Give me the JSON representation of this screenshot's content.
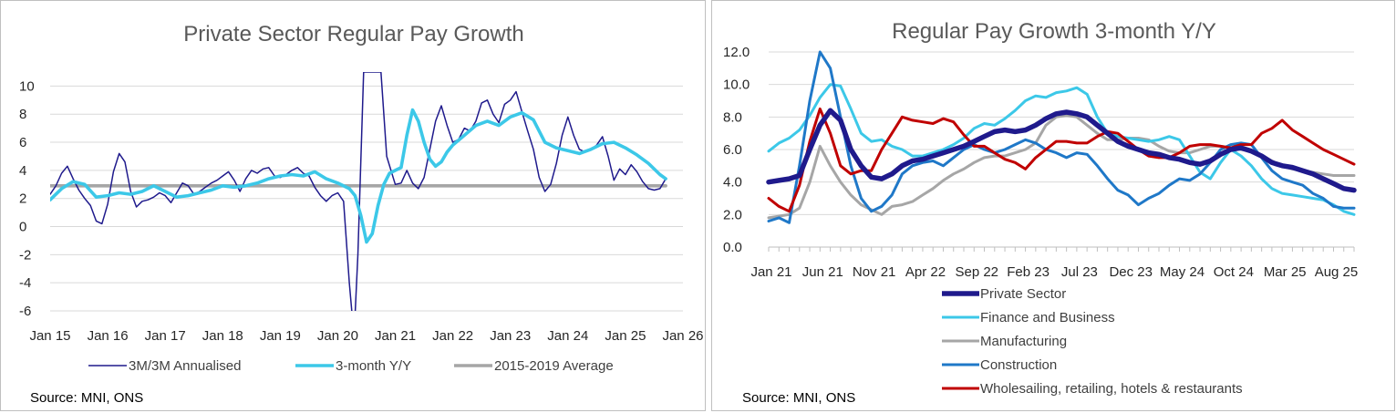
{
  "chart_data": [
    {
      "type": "line",
      "title": "Private Sector Regular Pay Growth",
      "source": "Source: MNI, ONS",
      "xlabel": "",
      "ylabel": "",
      "ylim": [
        -6,
        11
      ],
      "yticks": [
        "10",
        "8",
        "6",
        "4",
        "2",
        "0",
        "-2",
        "-4",
        "-6"
      ],
      "ytick_values": [
        10,
        8,
        6,
        4,
        2,
        0,
        -2,
        -4,
        -6
      ],
      "xticks": [
        "Jan 15",
        "Jan 16",
        "Jan 17",
        "Jan 18",
        "Jan 19",
        "Jan 20",
        "Jan 21",
        "Jan 22",
        "Jan 23",
        "Jan 24",
        "Jan 25",
        "Jan 26"
      ],
      "xtick_values": [
        2015,
        2016,
        2017,
        2018,
        2019,
        2020,
        2021,
        2022,
        2023,
        2024,
        2025,
        2026
      ],
      "series": [
        {
          "name": "3M/3M Annualised",
          "color": "#1f1a8c",
          "points": [
            [
              2015.0,
              2.3
            ],
            [
              2015.1,
              2.9
            ],
            [
              2015.2,
              3.8
            ],
            [
              2015.3,
              4.3
            ],
            [
              2015.4,
              3.4
            ],
            [
              2015.5,
              2.6
            ],
            [
              2015.6,
              2.0
            ],
            [
              2015.7,
              1.5
            ],
            [
              2015.8,
              0.4
            ],
            [
              2015.9,
              0.2
            ],
            [
              2016.0,
              1.6
            ],
            [
              2016.1,
              3.9
            ],
            [
              2016.2,
              5.2
            ],
            [
              2016.3,
              4.6
            ],
            [
              2016.4,
              2.5
            ],
            [
              2016.5,
              1.4
            ],
            [
              2016.6,
              1.8
            ],
            [
              2016.7,
              1.9
            ],
            [
              2016.8,
              2.1
            ],
            [
              2016.9,
              2.4
            ],
            [
              2017.0,
              2.2
            ],
            [
              2017.1,
              1.7
            ],
            [
              2017.2,
              2.4
            ],
            [
              2017.3,
              3.1
            ],
            [
              2017.4,
              2.9
            ],
            [
              2017.5,
              2.3
            ],
            [
              2017.6,
              2.5
            ],
            [
              2017.7,
              2.8
            ],
            [
              2017.8,
              3.1
            ],
            [
              2017.9,
              3.3
            ],
            [
              2018.0,
              3.6
            ],
            [
              2018.1,
              3.9
            ],
            [
              2018.2,
              3.3
            ],
            [
              2018.3,
              2.5
            ],
            [
              2018.4,
              3.4
            ],
            [
              2018.5,
              4.0
            ],
            [
              2018.6,
              3.8
            ],
            [
              2018.7,
              4.1
            ],
            [
              2018.8,
              4.2
            ],
            [
              2018.9,
              3.6
            ],
            [
              2019.0,
              3.5
            ],
            [
              2019.1,
              3.7
            ],
            [
              2019.2,
              4.0
            ],
            [
              2019.3,
              4.2
            ],
            [
              2019.4,
              3.8
            ],
            [
              2019.5,
              3.6
            ],
            [
              2019.6,
              2.8
            ],
            [
              2019.7,
              2.2
            ],
            [
              2019.8,
              1.8
            ],
            [
              2019.9,
              2.2
            ],
            [
              2020.0,
              2.4
            ],
            [
              2020.1,
              1.8
            ],
            [
              2020.2,
              -4.0
            ],
            [
              2020.25,
              -6.3
            ],
            [
              2020.3,
              -6.3
            ],
            [
              2020.35,
              -2.0
            ],
            [
              2020.45,
              11.0
            ],
            [
              2020.75,
              11.0
            ],
            [
              2020.85,
              5.0
            ],
            [
              2021.0,
              3.0
            ],
            [
              2021.1,
              3.1
            ],
            [
              2021.2,
              4.0
            ],
            [
              2021.3,
              3.1
            ],
            [
              2021.4,
              2.7
            ],
            [
              2021.5,
              3.5
            ],
            [
              2021.6,
              5.5
            ],
            [
              2021.7,
              7.5
            ],
            [
              2021.8,
              8.6
            ],
            [
              2021.9,
              7.2
            ],
            [
              2022.0,
              6.0
            ],
            [
              2022.1,
              6.2
            ],
            [
              2022.2,
              7.0
            ],
            [
              2022.3,
              6.8
            ],
            [
              2022.4,
              7.5
            ],
            [
              2022.5,
              8.8
            ],
            [
              2022.6,
              9.0
            ],
            [
              2022.7,
              8.0
            ],
            [
              2022.8,
              7.4
            ],
            [
              2022.9,
              8.7
            ],
            [
              2023.0,
              9.0
            ],
            [
              2023.1,
              9.6
            ],
            [
              2023.2,
              8.2
            ],
            [
              2023.3,
              6.8
            ],
            [
              2023.4,
              5.5
            ],
            [
              2023.5,
              3.5
            ],
            [
              2023.6,
              2.5
            ],
            [
              2023.7,
              3.0
            ],
            [
              2023.8,
              4.5
            ],
            [
              2023.9,
              6.5
            ],
            [
              2024.0,
              7.8
            ],
            [
              2024.1,
              6.5
            ],
            [
              2024.2,
              5.5
            ],
            [
              2024.3,
              5.3
            ],
            [
              2024.4,
              5.5
            ],
            [
              2024.5,
              5.8
            ],
            [
              2024.6,
              6.4
            ],
            [
              2024.7,
              5.0
            ],
            [
              2024.8,
              3.3
            ],
            [
              2024.9,
              4.1
            ],
            [
              2025.0,
              3.7
            ],
            [
              2025.1,
              4.4
            ],
            [
              2025.2,
              3.9
            ],
            [
              2025.3,
              3.2
            ],
            [
              2025.4,
              2.7
            ],
            [
              2025.5,
              2.6
            ],
            [
              2025.6,
              2.7
            ],
            [
              2025.7,
              3.4
            ]
          ]
        },
        {
          "name": "3-month Y/Y",
          "color": "#3cc8e8",
          "points": [
            [
              2015.0,
              1.9
            ],
            [
              2015.2,
              2.7
            ],
            [
              2015.4,
              3.2
            ],
            [
              2015.6,
              3.0
            ],
            [
              2015.8,
              2.1
            ],
            [
              2016.0,
              2.2
            ],
            [
              2016.2,
              2.4
            ],
            [
              2016.4,
              2.3
            ],
            [
              2016.6,
              2.5
            ],
            [
              2016.8,
              2.9
            ],
            [
              2017.0,
              2.5
            ],
            [
              2017.2,
              2.1
            ],
            [
              2017.4,
              2.2
            ],
            [
              2017.6,
              2.4
            ],
            [
              2017.8,
              2.6
            ],
            [
              2018.0,
              2.9
            ],
            [
              2018.2,
              2.8
            ],
            [
              2018.4,
              2.9
            ],
            [
              2018.6,
              3.1
            ],
            [
              2018.8,
              3.4
            ],
            [
              2019.0,
              3.6
            ],
            [
              2019.2,
              3.7
            ],
            [
              2019.4,
              3.6
            ],
            [
              2019.6,
              3.9
            ],
            [
              2019.8,
              3.4
            ],
            [
              2020.0,
              3.1
            ],
            [
              2020.2,
              2.7
            ],
            [
              2020.3,
              2.2
            ],
            [
              2020.4,
              0.8
            ],
            [
              2020.5,
              -1.1
            ],
            [
              2020.6,
              -0.5
            ],
            [
              2020.7,
              1.5
            ],
            [
              2020.8,
              3.0
            ],
            [
              2020.9,
              3.8
            ],
            [
              2021.0,
              4.0
            ],
            [
              2021.1,
              4.2
            ],
            [
              2021.2,
              6.5
            ],
            [
              2021.3,
              8.3
            ],
            [
              2021.4,
              7.5
            ],
            [
              2021.5,
              6.0
            ],
            [
              2021.6,
              4.8
            ],
            [
              2021.7,
              4.3
            ],
            [
              2021.8,
              4.6
            ],
            [
              2021.9,
              5.3
            ],
            [
              2022.0,
              5.8
            ],
            [
              2022.2,
              6.5
            ],
            [
              2022.4,
              7.2
            ],
            [
              2022.6,
              7.5
            ],
            [
              2022.8,
              7.2
            ],
            [
              2023.0,
              7.8
            ],
            [
              2023.2,
              8.1
            ],
            [
              2023.4,
              7.6
            ],
            [
              2023.6,
              6.0
            ],
            [
              2023.8,
              5.6
            ],
            [
              2024.0,
              5.4
            ],
            [
              2024.2,
              5.2
            ],
            [
              2024.4,
              5.5
            ],
            [
              2024.6,
              5.9
            ],
            [
              2024.8,
              6.0
            ],
            [
              2025.0,
              5.6
            ],
            [
              2025.2,
              5.1
            ],
            [
              2025.4,
              4.5
            ],
            [
              2025.6,
              3.7
            ],
            [
              2025.7,
              3.4
            ]
          ]
        },
        {
          "name": "2015-2019 Average",
          "color": "#a6a6a6",
          "points": [
            [
              2015.0,
              2.9
            ],
            [
              2025.7,
              2.9
            ]
          ]
        }
      ]
    },
    {
      "type": "line",
      "title": "Regular Pay Growth 3-month Y/Y",
      "source": "Source: MNI, ONS",
      "xlabel": "",
      "ylabel": "",
      "ylim": [
        0,
        12
      ],
      "yticks": [
        "12.0",
        "10.0",
        "8.0",
        "6.0",
        "4.0",
        "2.0",
        "0.0"
      ],
      "ytick_values": [
        12,
        10,
        8,
        6,
        4,
        2,
        0
      ],
      "xticks": [
        "Jan 21",
        "Jun 21",
        "Nov 21",
        "Apr 22",
        "Sep 22",
        "Feb 23",
        "Jul 23",
        "Dec 23",
        "May 24",
        "Oct 24",
        "Mar 25",
        "Aug 25"
      ],
      "xtick_values": [
        0,
        5,
        10,
        15,
        20,
        25,
        30,
        35,
        40,
        45,
        50,
        55
      ],
      "series": [
        {
          "name": "Private Sector",
          "color": "#1f1a8c",
          "values": [
            4.0,
            4.1,
            4.2,
            4.4,
            6.0,
            7.5,
            8.4,
            7.8,
            6.0,
            5.0,
            4.3,
            4.2,
            4.5,
            5.0,
            5.3,
            5.4,
            5.6,
            5.8,
            6.0,
            6.2,
            6.5,
            6.8,
            7.1,
            7.2,
            7.1,
            7.2,
            7.5,
            7.9,
            8.2,
            8.3,
            8.2,
            8.0,
            7.5,
            7.0,
            6.5,
            6.2,
            6.0,
            5.8,
            5.7,
            5.5,
            5.4,
            5.2,
            5.1,
            5.3,
            5.7,
            6.0,
            6.1,
            5.9,
            5.6,
            5.2,
            5.0,
            4.9,
            4.7,
            4.5,
            4.2,
            3.9,
            3.6,
            3.5
          ]
        },
        {
          "name": "Finance and Business",
          "color": "#3cc8e8",
          "values": [
            5.9,
            6.4,
            6.7,
            7.2,
            8.1,
            9.2,
            10.0,
            9.9,
            8.5,
            7.0,
            6.5,
            6.6,
            6.2,
            6.0,
            5.6,
            5.6,
            5.8,
            6.0,
            6.3,
            6.7,
            7.3,
            7.6,
            7.5,
            7.9,
            8.4,
            9.0,
            9.3,
            9.2,
            9.5,
            9.6,
            9.8,
            9.4,
            8.0,
            7.0,
            6.8,
            6.7,
            6.6,
            6.5,
            6.6,
            6.8,
            6.6,
            5.6,
            4.6,
            4.2,
            5.2,
            6.0,
            5.6,
            5.0,
            4.2,
            3.6,
            3.3,
            3.2,
            3.1,
            3.0,
            2.9,
            2.6,
            2.2,
            2.0
          ]
        },
        {
          "name": "Manufacturing",
          "color": "#a6a6a6",
          "values": [
            1.8,
            1.9,
            2.0,
            2.4,
            4.0,
            6.2,
            5.0,
            4.0,
            3.2,
            2.6,
            2.3,
            2.0,
            2.5,
            2.6,
            2.8,
            3.2,
            3.6,
            4.1,
            4.5,
            4.8,
            5.2,
            5.5,
            5.6,
            5.6,
            5.8,
            6.0,
            6.4,
            7.5,
            8.0,
            8.1,
            8.0,
            7.5,
            7.0,
            6.6,
            6.6,
            6.7,
            6.7,
            6.6,
            6.2,
            5.9,
            5.8,
            5.8,
            6.0,
            6.2,
            6.2,
            6.1,
            6.0,
            5.9,
            5.6,
            5.3,
            5.0,
            4.8,
            4.7,
            4.6,
            4.5,
            4.4,
            4.4,
            4.4
          ]
        },
        {
          "name": "Construction",
          "color": "#1f78c8",
          "values": [
            1.6,
            1.8,
            1.5,
            5.0,
            9.0,
            12.0,
            11.0,
            8.0,
            5.0,
            3.0,
            2.2,
            2.5,
            3.2,
            4.5,
            5.0,
            5.2,
            5.3,
            5.0,
            5.5,
            6.0,
            6.3,
            6.0,
            5.8,
            6.0,
            6.3,
            6.6,
            6.4,
            6.0,
            5.8,
            5.5,
            5.8,
            5.7,
            5.0,
            4.2,
            3.5,
            3.2,
            2.6,
            3.0,
            3.3,
            3.8,
            4.2,
            4.1,
            4.5,
            5.2,
            6.0,
            6.3,
            6.4,
            6.3,
            5.5,
            4.7,
            4.2,
            4.0,
            3.8,
            3.3,
            3.0,
            2.5,
            2.4,
            2.4
          ]
        },
        {
          "name": "Wholesailing, retailing, hotels & restaurants",
          "color": "#c00000",
          "values": [
            3.0,
            2.5,
            2.2,
            3.8,
            6.5,
            8.5,
            7.0,
            5.0,
            4.5,
            4.7,
            4.7,
            6.0,
            7.0,
            8.0,
            7.8,
            7.7,
            7.6,
            7.9,
            7.7,
            6.9,
            6.2,
            6.2,
            5.8,
            5.4,
            5.2,
            4.8,
            5.5,
            6.0,
            6.5,
            6.5,
            6.4,
            6.4,
            6.8,
            7.1,
            7.0,
            6.5,
            6.0,
            5.6,
            5.5,
            5.5,
            5.8,
            6.2,
            6.3,
            6.3,
            6.2,
            6.1,
            6.3,
            6.3,
            7.0,
            7.3,
            7.8,
            7.2,
            6.8,
            6.4,
            6.0,
            5.7,
            5.4,
            5.1
          ]
        }
      ]
    }
  ]
}
